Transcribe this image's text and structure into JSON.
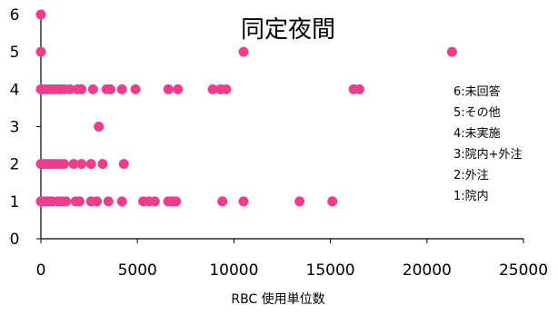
{
  "chart_data": {
    "type": "scatter",
    "title": "同定夜間",
    "xlabel": "RBC 使用単位数",
    "ylabel": "",
    "xlim": [
      0,
      25000
    ],
    "ylim": [
      0,
      6
    ],
    "x_ticks": [
      "0",
      "5000",
      "10000",
      "15000",
      "20000",
      "25000"
    ],
    "y_ticks": [
      "0",
      "1",
      "2",
      "3",
      "4",
      "5",
      "6"
    ],
    "grid": false,
    "legend_position": "right",
    "category_legend": [
      "6:未回答",
      "5:その他",
      "4:未実施",
      "3:院内+外注",
      "2:外注",
      "1:院内"
    ],
    "marker_color": "#EE3D8B",
    "series": [
      {
        "points": [
          [
            0,
            6
          ],
          [
            0,
            5
          ],
          [
            10500,
            5
          ],
          [
            21300,
            5
          ],
          [
            0,
            4
          ],
          [
            100,
            4
          ],
          [
            200,
            4
          ],
          [
            300,
            4
          ],
          [
            450,
            4
          ],
          [
            600,
            4
          ],
          [
            800,
            4
          ],
          [
            1000,
            4
          ],
          [
            1200,
            4
          ],
          [
            1500,
            4
          ],
          [
            1900,
            4
          ],
          [
            2100,
            4
          ],
          [
            2700,
            4
          ],
          [
            3400,
            4
          ],
          [
            3600,
            4
          ],
          [
            4200,
            4
          ],
          [
            4900,
            4
          ],
          [
            6600,
            4
          ],
          [
            7100,
            4
          ],
          [
            8900,
            4
          ],
          [
            9300,
            4
          ],
          [
            9600,
            4
          ],
          [
            16200,
            4
          ],
          [
            16500,
            4
          ],
          [
            3000,
            3
          ],
          [
            0,
            2
          ],
          [
            150,
            2
          ],
          [
            300,
            2
          ],
          [
            450,
            2
          ],
          [
            600,
            2
          ],
          [
            800,
            2
          ],
          [
            1000,
            2
          ],
          [
            1200,
            2
          ],
          [
            1700,
            2
          ],
          [
            2100,
            2
          ],
          [
            2600,
            2
          ],
          [
            3200,
            2
          ],
          [
            4300,
            2
          ],
          [
            0,
            1
          ],
          [
            100,
            1
          ],
          [
            250,
            1
          ],
          [
            400,
            1
          ],
          [
            600,
            1
          ],
          [
            900,
            1
          ],
          [
            1100,
            1
          ],
          [
            1300,
            1
          ],
          [
            1800,
            1
          ],
          [
            2000,
            1
          ],
          [
            2600,
            1
          ],
          [
            2900,
            1
          ],
          [
            3500,
            1
          ],
          [
            4200,
            1
          ],
          [
            5300,
            1
          ],
          [
            5600,
            1
          ],
          [
            5900,
            1
          ],
          [
            6600,
            1
          ],
          [
            6800,
            1
          ],
          [
            7000,
            1
          ],
          [
            9400,
            1
          ],
          [
            10500,
            1
          ],
          [
            13400,
            1
          ],
          [
            15100,
            1
          ]
        ]
      }
    ]
  }
}
